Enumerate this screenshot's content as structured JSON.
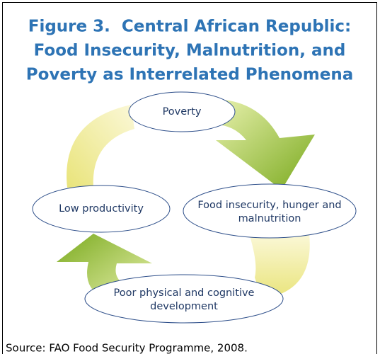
{
  "title": [
    "Figure 3.  Central African Republic:",
    "Food Insecurity, Malnutrition, and",
    "Poverty as Interrelated Phenomena"
  ],
  "nodes": [
    {
      "label": [
        "Poverty"
      ]
    },
    {
      "label": [
        "Food insecurity, hunger and",
        "malnutrition"
      ]
    },
    {
      "label": [
        "Poor physical and cognitive",
        "development"
      ]
    },
    {
      "label": [
        "Low productivity"
      ]
    }
  ],
  "source": "Source: FAO Food Security Programme, 2008."
}
